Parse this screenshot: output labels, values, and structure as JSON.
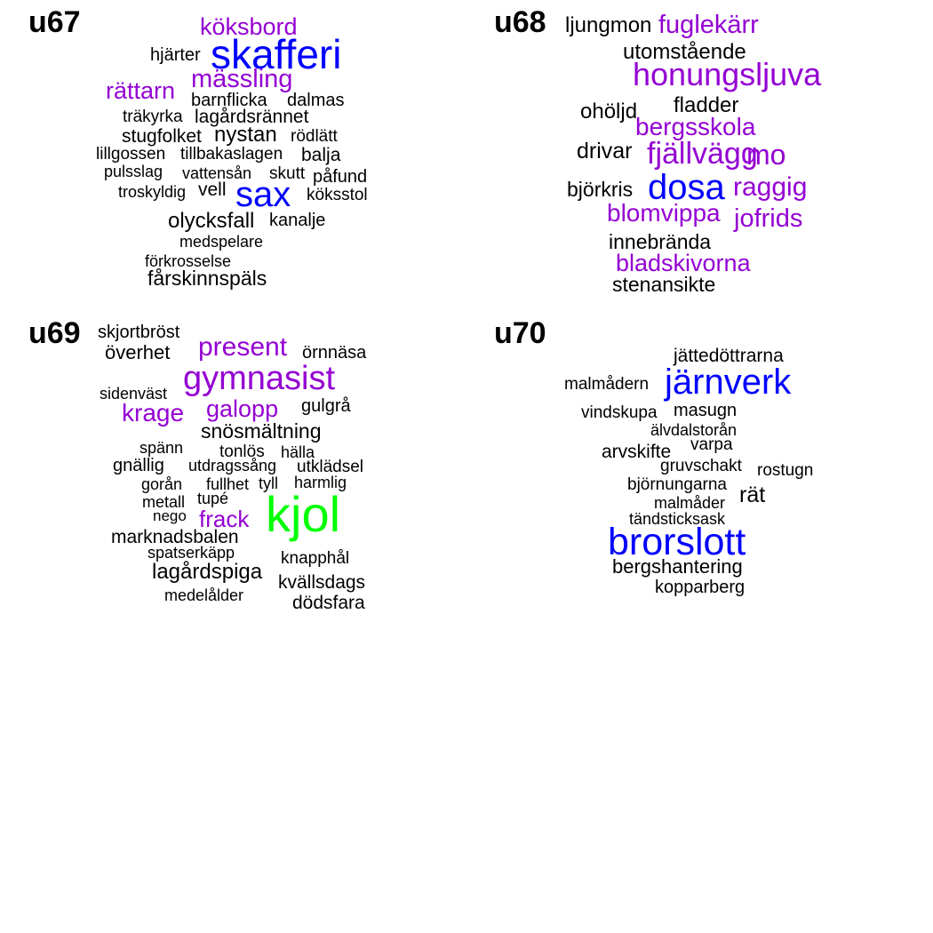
{
  "colors": {
    "black": "#000000",
    "purple": "#9400D3",
    "blue": "#0000FF",
    "green": "#00FF00"
  },
  "panels": [
    {
      "title": "u67",
      "words": [
        {
          "text": "köksbord",
          "color": "purple"
        },
        {
          "text": "hjärter",
          "color": "black"
        },
        {
          "text": "skafferi",
          "color": "blue"
        },
        {
          "text": "mässling",
          "color": "purple"
        },
        {
          "text": "rättarn",
          "color": "purple"
        },
        {
          "text": "barnflicka",
          "color": "black"
        },
        {
          "text": "dalmas",
          "color": "black"
        },
        {
          "text": "träkyrka",
          "color": "black"
        },
        {
          "text": "lagårdsrännet",
          "color": "black"
        },
        {
          "text": "stugfolket",
          "color": "black"
        },
        {
          "text": "nystan",
          "color": "black"
        },
        {
          "text": "rödlätt",
          "color": "black"
        },
        {
          "text": "lillgossen",
          "color": "black"
        },
        {
          "text": "tillbakaslagen",
          "color": "black"
        },
        {
          "text": "balja",
          "color": "black"
        },
        {
          "text": "pulsslag",
          "color": "black"
        },
        {
          "text": "vattensån",
          "color": "black"
        },
        {
          "text": "skutt",
          "color": "black"
        },
        {
          "text": "påfund",
          "color": "black"
        },
        {
          "text": "troskyldig",
          "color": "black"
        },
        {
          "text": "vell",
          "color": "black"
        },
        {
          "text": "sax",
          "color": "blue"
        },
        {
          "text": "köksstol",
          "color": "black"
        },
        {
          "text": "olycksfall",
          "color": "black"
        },
        {
          "text": "kanalje",
          "color": "black"
        },
        {
          "text": "medspelare",
          "color": "black"
        },
        {
          "text": "förkrosselse",
          "color": "black"
        },
        {
          "text": "fårskinnspäls",
          "color": "black"
        }
      ]
    },
    {
      "title": "u68",
      "words": [
        {
          "text": "ljungmon",
          "color": "black"
        },
        {
          "text": "fuglekärr",
          "color": "purple"
        },
        {
          "text": "utomstående",
          "color": "black"
        },
        {
          "text": "honungsljuva",
          "color": "purple"
        },
        {
          "text": "ohöljd",
          "color": "black"
        },
        {
          "text": "fladder",
          "color": "black"
        },
        {
          "text": "bergsskola",
          "color": "purple"
        },
        {
          "text": "drivar",
          "color": "black"
        },
        {
          "text": "fjällvägg",
          "color": "purple"
        },
        {
          "text": "mo",
          "color": "purple"
        },
        {
          "text": "björkris",
          "color": "black"
        },
        {
          "text": "dosa",
          "color": "blue"
        },
        {
          "text": "raggig",
          "color": "purple"
        },
        {
          "text": "blomvippa",
          "color": "purple"
        },
        {
          "text": "jofrids",
          "color": "purple"
        },
        {
          "text": "innebrända",
          "color": "black"
        },
        {
          "text": "bladskivorna",
          "color": "purple"
        },
        {
          "text": "stenansikte",
          "color": "black"
        }
      ]
    },
    {
      "title": "u69",
      "words": [
        {
          "text": "skjortbröst",
          "color": "black"
        },
        {
          "text": "överhet",
          "color": "black"
        },
        {
          "text": "present",
          "color": "purple"
        },
        {
          "text": "örnnäsa",
          "color": "black"
        },
        {
          "text": "gymnasist",
          "color": "purple"
        },
        {
          "text": "sidenväst",
          "color": "black"
        },
        {
          "text": "krage",
          "color": "purple"
        },
        {
          "text": "galopp",
          "color": "purple"
        },
        {
          "text": "gulgrå",
          "color": "black"
        },
        {
          "text": "snösmältning",
          "color": "black"
        },
        {
          "text": "spänn",
          "color": "black"
        },
        {
          "text": "tonlös",
          "color": "black"
        },
        {
          "text": "hälla",
          "color": "black"
        },
        {
          "text": "gnällig",
          "color": "black"
        },
        {
          "text": "utdragssång",
          "color": "black"
        },
        {
          "text": "utklädsel",
          "color": "black"
        },
        {
          "text": "gorån",
          "color": "black"
        },
        {
          "text": "fullhet",
          "color": "black"
        },
        {
          "text": "tyll",
          "color": "black"
        },
        {
          "text": "harmlig",
          "color": "black"
        },
        {
          "text": "metall",
          "color": "black"
        },
        {
          "text": "tupé",
          "color": "black"
        },
        {
          "text": "kjol",
          "color": "green"
        },
        {
          "text": "nego",
          "color": "black"
        },
        {
          "text": "frack",
          "color": "purple"
        },
        {
          "text": "marknadsbalen",
          "color": "black"
        },
        {
          "text": "spatserkäpp",
          "color": "black"
        },
        {
          "text": "knapphål",
          "color": "black"
        },
        {
          "text": "lagårdspiga",
          "color": "black"
        },
        {
          "text": "kvällsdags",
          "color": "black"
        },
        {
          "text": "medelålder",
          "color": "black"
        },
        {
          "text": "dödsfara",
          "color": "black"
        }
      ]
    },
    {
      "title": "u70",
      "words": [
        {
          "text": "jättedöttrarna",
          "color": "black"
        },
        {
          "text": "malmådern",
          "color": "black"
        },
        {
          "text": "järnverk",
          "color": "blue"
        },
        {
          "text": "vindskupa",
          "color": "black"
        },
        {
          "text": "masugn",
          "color": "black"
        },
        {
          "text": "älvdalstorån",
          "color": "black"
        },
        {
          "text": "varpa",
          "color": "black"
        },
        {
          "text": "arvskifte",
          "color": "black"
        },
        {
          "text": "gruvschakt",
          "color": "black"
        },
        {
          "text": "rostugn",
          "color": "black"
        },
        {
          "text": "björnungarna",
          "color": "black"
        },
        {
          "text": "rät",
          "color": "black"
        },
        {
          "text": "malmåder",
          "color": "black"
        },
        {
          "text": "tändsticksask",
          "color": "black"
        },
        {
          "text": "brorslott",
          "color": "blue"
        },
        {
          "text": "bergshantering",
          "color": "black"
        },
        {
          "text": "kopparberg",
          "color": "black"
        }
      ]
    }
  ]
}
